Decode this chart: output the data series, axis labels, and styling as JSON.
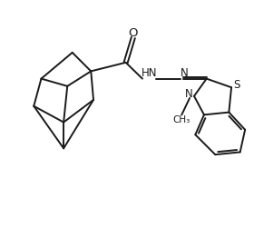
{
  "bg_color": "#ffffff",
  "line_color": "#1a1a1a",
  "line_width": 1.4,
  "font_size": 8.5,
  "fig_width": 2.8,
  "fig_height": 2.62,
  "dpi": 100,
  "xlim": [
    0,
    10
  ],
  "ylim": [
    0,
    9.36
  ]
}
